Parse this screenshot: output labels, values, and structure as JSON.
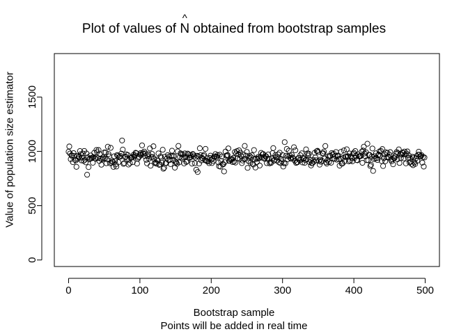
{
  "title": {
    "prefix": "Plot of values of ",
    "symbol": "N",
    "hat": "^",
    "suffix": " obtained from bootstrap samples"
  },
  "chart_data": {
    "type": "scatter",
    "title": "Plot of values of N̂ obtained from bootstrap samples",
    "xlabel": "Bootstrap sample",
    "xsub": "Points will be added in real time",
    "ylabel": "Value of population size estimator",
    "xlim": [
      -20,
      520
    ],
    "ylim": [
      -60,
      1900
    ],
    "xticks": [
      0,
      100,
      200,
      300,
      400,
      500
    ],
    "yticks": [
      0,
      500,
      1000,
      1500
    ],
    "marker": "open-circle",
    "grid": false,
    "n_points": 500,
    "summary": {
      "center": 940,
      "typical_min": 840,
      "typical_max": 1040
    },
    "highlighted_points": [
      {
        "x": 1,
        "y": 1045
      },
      {
        "x": 26,
        "y": 785
      },
      {
        "x": 75,
        "y": 1100
      },
      {
        "x": 103,
        "y": 1055
      },
      {
        "x": 181,
        "y": 810
      },
      {
        "x": 218,
        "y": 815
      },
      {
        "x": 303,
        "y": 1085
      },
      {
        "x": 419,
        "y": 1070
      },
      {
        "x": 427,
        "y": 820
      }
    ]
  }
}
